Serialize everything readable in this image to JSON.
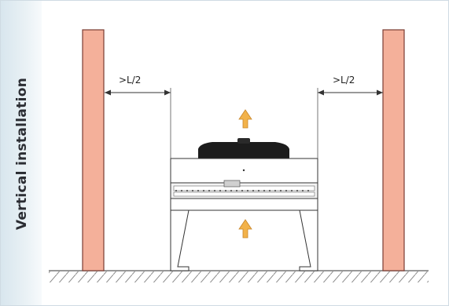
{
  "side_label": "Vertical installation",
  "dimension_left": ">L/2",
  "dimension_right": ">L/2",
  "colors": {
    "wall_fill": "#f4b09a",
    "wall_stroke": "#7a3d33",
    "airflow_arrow": "#f2b24a",
    "fan_cover": "#1c1c1c",
    "strip_background": "#dde9ef"
  }
}
